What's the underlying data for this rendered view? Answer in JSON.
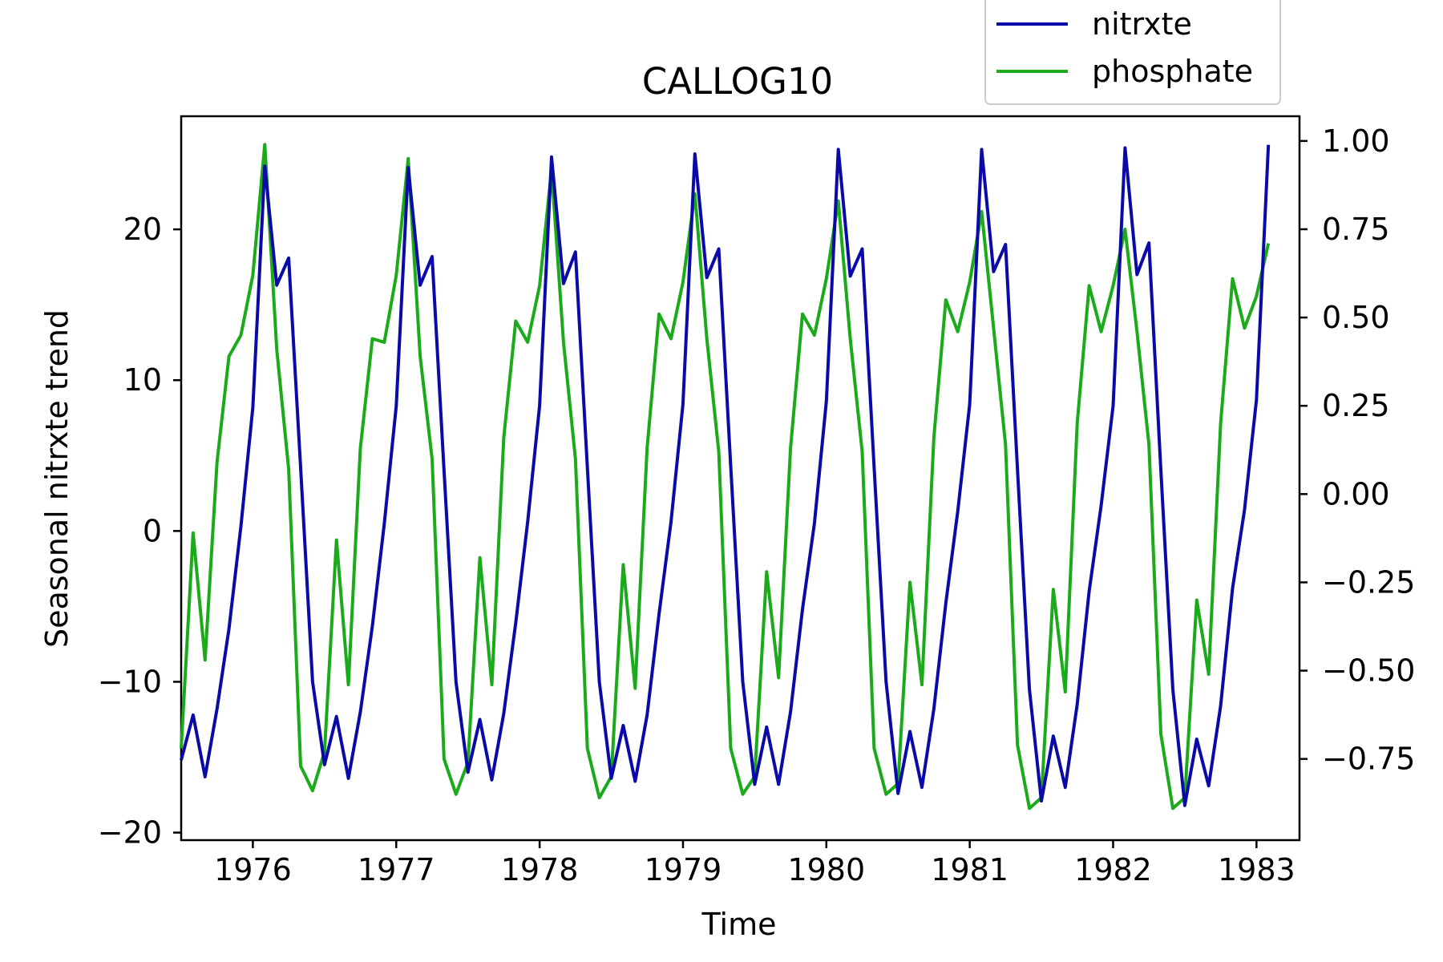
{
  "chart_data": {
    "type": "line",
    "title": "CALLOG10",
    "xlabel": "Time",
    "ylabel_left": "Seasonal nitrxte trend",
    "xlim": [
      1975.5,
      1983.3
    ],
    "ylim_left": [
      -20.5,
      27.5
    ],
    "ylim_right": [
      -0.98,
      1.07
    ],
    "x_ticks": [
      "1976",
      "1977",
      "1978",
      "1979",
      "1980",
      "1981",
      "1982",
      "1983"
    ],
    "y_left_ticks": [
      "20",
      "10",
      "0",
      "−10",
      "−20"
    ],
    "y_right_ticks": [
      "1.00",
      "0.75",
      "0.50",
      "0.25",
      "0.00",
      "−0.25",
      "−0.50",
      "−0.75"
    ],
    "legend_position": "top-right",
    "series": [
      {
        "name": "nitrxte",
        "axis": "left",
        "color": "#0a0aa8",
        "x_start": 1975.5,
        "x_step": 0.08333,
        "values": [
          -15.2,
          -12.2,
          -16.3,
          -11.8,
          -6.5,
          0.3,
          8.2,
          24.2,
          16.3,
          18.1,
          4.2,
          -10.0,
          -15.5,
          -12.3,
          -16.4,
          -12.0,
          -6.3,
          0.5,
          8.3,
          24.1,
          16.3,
          18.2,
          4.0,
          -10.0,
          -16.0,
          -12.5,
          -16.5,
          -12.1,
          -6.1,
          0.6,
          8.3,
          24.8,
          16.4,
          18.5,
          4.2,
          -10.0,
          -16.4,
          -12.9,
          -16.6,
          -12.2,
          -5.5,
          0.6,
          8.4,
          25.0,
          16.8,
          18.7,
          4.3,
          -10.0,
          -16.8,
          -13.0,
          -16.8,
          -12.0,
          -5.2,
          0.5,
          8.6,
          25.3,
          16.9,
          18.7,
          4.2,
          -10.0,
          -17.4,
          -13.3,
          -17.0,
          -11.8,
          -4.8,
          1.3,
          8.4,
          25.3,
          17.2,
          19.0,
          4.1,
          -10.5,
          -17.9,
          -13.6,
          -17.0,
          -11.5,
          -4.0,
          1.7,
          8.3,
          25.4,
          17.0,
          19.1,
          4.0,
          -10.5,
          -18.2,
          -13.8,
          -16.9,
          -11.6,
          -3.8,
          1.4,
          8.7,
          25.6
        ]
      },
      {
        "name": "phosphate",
        "axis": "right",
        "color": "#1aaa1a",
        "x_start": 1975.5,
        "x_step": 0.08333,
        "values": [
          -0.72,
          -0.11,
          -0.47,
          0.09,
          0.39,
          0.45,
          0.62,
          0.99,
          0.41,
          0.07,
          -0.77,
          -0.84,
          -0.73,
          -0.13,
          -0.54,
          0.13,
          0.44,
          0.43,
          0.62,
          0.95,
          0.39,
          0.1,
          -0.75,
          -0.85,
          -0.76,
          -0.18,
          -0.54,
          0.16,
          0.49,
          0.43,
          0.59,
          0.92,
          0.43,
          0.1,
          -0.72,
          -0.86,
          -0.8,
          -0.2,
          -0.55,
          0.13,
          0.51,
          0.44,
          0.6,
          0.85,
          0.44,
          0.12,
          -0.72,
          -0.85,
          -0.8,
          -0.22,
          -0.52,
          0.13,
          0.51,
          0.45,
          0.61,
          0.83,
          0.44,
          0.12,
          -0.72,
          -0.85,
          -0.82,
          -0.25,
          -0.54,
          0.16,
          0.55,
          0.46,
          0.6,
          0.8,
          0.47,
          0.14,
          -0.71,
          -0.89,
          -0.86,
          -0.27,
          -0.56,
          0.2,
          0.59,
          0.46,
          0.59,
          0.75,
          0.46,
          0.14,
          -0.68,
          -0.89,
          -0.86,
          -0.3,
          -0.51,
          0.2,
          0.61,
          0.47,
          0.56,
          0.71
        ]
      }
    ]
  }
}
